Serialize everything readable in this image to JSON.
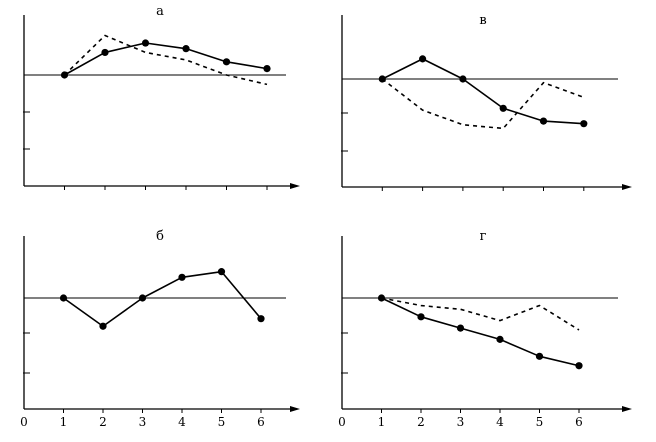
{
  "chart_data": [
    {
      "type": "line",
      "title": "а",
      "x_ticks": [],
      "origin_label": "",
      "xlim": [
        0,
        6.9
      ],
      "ylim": [
        -2.95,
        1.55
      ],
      "baseline": 0,
      "series": [
        {
          "style": "solid",
          "marker": "dot",
          "x": [
            1,
            2,
            3,
            4,
            5,
            6
          ],
          "y": [
            0,
            0.6,
            0.85,
            0.7,
            0.35,
            0.17
          ]
        },
        {
          "style": "dashed",
          "marker": "none",
          "x": [
            1,
            2,
            3,
            4,
            5,
            6
          ],
          "y": [
            0,
            1.05,
            0.6,
            0.4,
            0.0,
            -0.25
          ]
        }
      ]
    },
    {
      "type": "line",
      "title": "в",
      "x_ticks": [],
      "origin_label": "",
      "xlim": [
        0,
        6.9
      ],
      "ylim": [
        -2.95,
        1.55
      ],
      "baseline": 0,
      "series": [
        {
          "style": "solid",
          "marker": "dot",
          "x": [
            1,
            2,
            3,
            4,
            5,
            6
          ],
          "y": [
            0,
            0.55,
            0.0,
            -0.8,
            -1.15,
            -1.22
          ]
        },
        {
          "style": "dashed",
          "marker": "none",
          "x": [
            1,
            2,
            3,
            4,
            5,
            6
          ],
          "y": [
            0,
            -0.85,
            -1.25,
            -1.35,
            -0.1,
            -0.5
          ]
        }
      ]
    },
    {
      "type": "line",
      "title": "б",
      "x_ticks": [
        "1",
        "2",
        "3",
        "4",
        "5",
        "6"
      ],
      "origin_label": "0",
      "xlim": [
        0,
        6.9
      ],
      "ylim": [
        -2.95,
        1.55
      ],
      "baseline": 0,
      "series": [
        {
          "style": "solid",
          "marker": "dot",
          "x": [
            1,
            2,
            3,
            4,
            5,
            6
          ],
          "y": [
            0,
            -0.75,
            0,
            0.55,
            0.7,
            -0.55
          ]
        }
      ]
    },
    {
      "type": "line",
      "title": "г",
      "x_ticks": [
        "1",
        "2",
        "3",
        "4",
        "5",
        "6"
      ],
      "origin_label": "0",
      "xlim": [
        0,
        6.9
      ],
      "ylim": [
        -2.95,
        1.55
      ],
      "baseline": 0,
      "series": [
        {
          "style": "solid",
          "marker": "dot",
          "x": [
            1,
            2,
            3,
            4,
            5,
            6
          ],
          "y": [
            0,
            -0.5,
            -0.8,
            -1.1,
            -1.55,
            -1.8
          ]
        },
        {
          "style": "dashed",
          "marker": "none",
          "x": [
            1,
            2,
            3,
            4,
            5,
            6
          ],
          "y": [
            0,
            -0.2,
            -0.3,
            -0.6,
            -0.2,
            -0.85
          ]
        }
      ]
    }
  ]
}
